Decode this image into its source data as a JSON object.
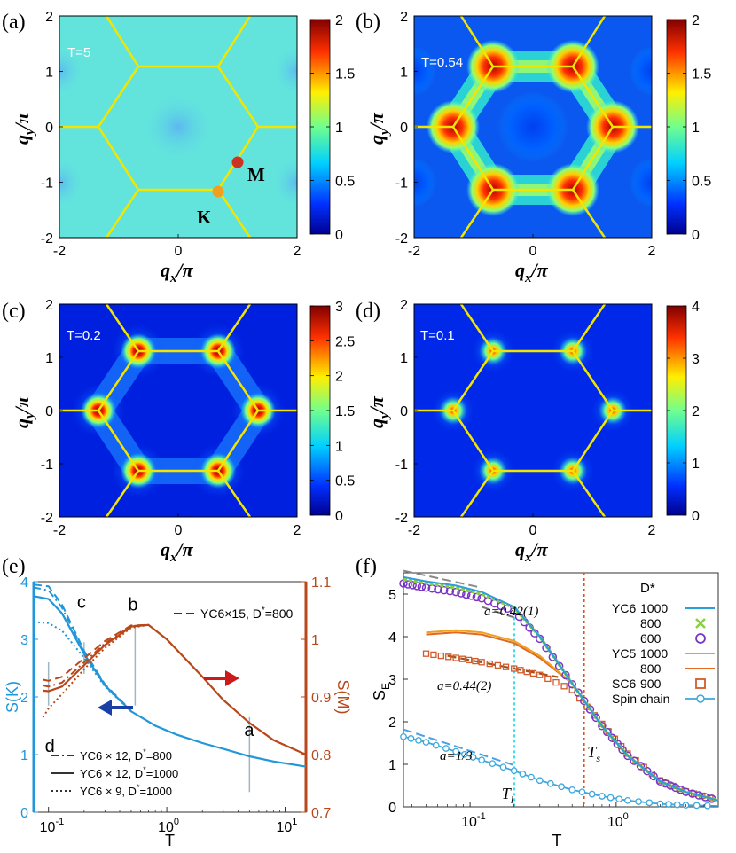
{
  "panels": {
    "a": {
      "letter": "(a)",
      "temp": "T=5",
      "cbar_ticks": [
        "2",
        "1.5",
        "1",
        "0.5",
        "0"
      ],
      "cbar_max": 2,
      "point_M": "M",
      "point_K": "K"
    },
    "b": {
      "letter": "(b)",
      "temp": "T=0.54",
      "cbar_ticks": [
        "2",
        "1.5",
        "1",
        "0.5",
        "0"
      ],
      "cbar_max": 2
    },
    "c": {
      "letter": "(c)",
      "temp": "T=0.2",
      "cbar_ticks": [
        "3",
        "2.5",
        "2",
        "1.5",
        "1",
        "0.5",
        "0"
      ],
      "cbar_max": 3
    },
    "d": {
      "letter": "(d)",
      "temp": "T=0.1",
      "cbar_ticks": [
        "4",
        "3",
        "2",
        "1",
        "0"
      ],
      "cbar_max": 4
    },
    "e": {
      "letter": "(e)"
    },
    "f": {
      "letter": "(f)"
    }
  },
  "map_axes": {
    "xticks": [
      "-2",
      "0",
      "2"
    ],
    "yticks": [
      "2",
      "1",
      "0",
      "-1",
      "-2"
    ],
    "xlabel_main": "q",
    "xlabel_sub": "x",
    "xlabel_tail": "/π",
    "ylabel_main": "q",
    "ylabel_sub": "y",
    "ylabel_tail": "/π"
  },
  "colors": {
    "hexagon": "#f2e600",
    "cmap": [
      "#00008f",
      "#0050ff",
      "#00dfff",
      "#70ff8f",
      "#ffef00",
      "#ff5000",
      "#800000"
    ],
    "SK": "#2196d8",
    "SM": "#b9471a",
    "YC6": "#2b9fd9",
    "green": "#88d040",
    "purple": "#7a35c8",
    "YC5": "#f0a020",
    "SC6": "#d35a2a"
  },
  "chart_data": [
    {
      "type": "line",
      "panel": "e",
      "xlabel": "T",
      "ylabel_left": "S(K)",
      "ylabel_right": "S(M)",
      "xscale": "log",
      "xlim": [
        0.075,
        15
      ],
      "ylim_left": [
        0,
        4
      ],
      "ylim_right": [
        0.7,
        1.1
      ],
      "xticks": [
        "10",
        "10",
        "10"
      ],
      "xtick_exps": [
        "-1",
        "0",
        "1"
      ],
      "yticks_left": [
        "0",
        "1",
        "2",
        "3",
        "4"
      ],
      "yticks_right": [
        "0.7",
        "0.8",
        "0.9",
        "1",
        "1.1"
      ],
      "legend_top": {
        "label": "YC6×15, D",
        "sup": "*",
        "tail": "=800"
      },
      "legend_bottom": [
        {
          "label": "YC6 × 12, D",
          "sup": "*",
          "tail": "=800",
          "style": "dashdot"
        },
        {
          "label": "YC6 × 12, D",
          "sup": "*",
          "tail": "=1000",
          "style": "solid"
        },
        {
          "label": "YC6 × 9, D",
          "sup": "*",
          "tail": "=1000",
          "style": "dotted"
        }
      ],
      "markers": [
        {
          "label": "a",
          "T": 5
        },
        {
          "label": "b",
          "T": 0.54
        },
        {
          "label": "c",
          "T": 0.2
        },
        {
          "label": "d",
          "T": 0.1
        }
      ],
      "series": [
        {
          "axis": "left",
          "style": "solid",
          "x": [
            0.075,
            0.1,
            0.13,
            0.2,
            0.3,
            0.5,
            0.8,
            1.2,
            2,
            3,
            5,
            8,
            15
          ],
          "y": [
            3.75,
            3.7,
            3.45,
            2.75,
            2.2,
            1.75,
            1.5,
            1.35,
            1.2,
            1.1,
            0.97,
            0.88,
            0.79
          ]
        },
        {
          "axis": "left",
          "style": "dashdot",
          "x": [
            0.075,
            0.1,
            0.13,
            0.2,
            0.3,
            0.5
          ],
          "y": [
            3.9,
            3.85,
            3.55,
            2.78,
            2.2,
            1.75
          ]
        },
        {
          "axis": "left",
          "style": "dashed",
          "x": [
            0.075,
            0.1,
            0.13,
            0.2,
            0.3,
            0.5
          ],
          "y": [
            3.95,
            3.92,
            3.6,
            2.8,
            2.22,
            1.76
          ]
        },
        {
          "axis": "left",
          "style": "dotted",
          "x": [
            0.075,
            0.1,
            0.13,
            0.2,
            0.3,
            0.5
          ],
          "y": [
            3.3,
            3.28,
            3.15,
            2.68,
            2.18,
            1.75
          ]
        },
        {
          "axis": "right",
          "style": "solid",
          "x": [
            0.09,
            0.1,
            0.13,
            0.2,
            0.3,
            0.5,
            0.7,
            1,
            2,
            3,
            5,
            8,
            15
          ],
          "y": [
            0.911,
            0.91,
            0.918,
            0.955,
            0.99,
            1.022,
            1.025,
            1.0,
            0.935,
            0.895,
            0.855,
            0.825,
            0.8
          ]
        },
        {
          "axis": "right",
          "style": "dashdot",
          "x": [
            0.09,
            0.1,
            0.13,
            0.2,
            0.3,
            0.5,
            0.7
          ],
          "y": [
            0.92,
            0.918,
            0.925,
            0.96,
            0.993,
            1.023,
            1.025
          ]
        },
        {
          "axis": "right",
          "style": "dashed",
          "x": [
            0.09,
            0.1,
            0.13,
            0.2,
            0.3,
            0.5,
            0.7
          ],
          "y": [
            0.93,
            0.928,
            0.935,
            0.967,
            0.997,
            1.024,
            1.025
          ]
        },
        {
          "axis": "right",
          "style": "dotted",
          "x": [
            0.09,
            0.1,
            0.13,
            0.2,
            0.3,
            0.5,
            0.7
          ],
          "y": [
            0.865,
            0.88,
            0.905,
            0.948,
            0.985,
            1.02,
            1.025
          ]
        }
      ]
    },
    {
      "type": "line",
      "panel": "f",
      "xlabel": "T",
      "ylabel": "S",
      "ylabel_sub": "E",
      "xscale": "log",
      "xlim": [
        0.035,
        5
      ],
      "ylim": [
        0,
        5.5
      ],
      "xticks": [
        "10",
        "10"
      ],
      "xtick_exps": [
        "-1",
        "0"
      ],
      "yticks": [
        "0",
        "1",
        "2",
        "3",
        "4",
        "5"
      ],
      "annotations": [
        "a=0.42(1)",
        "a=0.44(2)",
        "a=1/3"
      ],
      "Tl": {
        "label": "T",
        "sub": "l",
        "T": 0.2
      },
      "Ts": {
        "label": "T",
        "sub": "s",
        "T": 0.6
      },
      "legend": {
        "header": "D*",
        "rows": [
          {
            "model": "YC6",
            "D": "1000",
            "marker": "line"
          },
          {
            "model": "",
            "D": "800",
            "marker": "x"
          },
          {
            "model": "",
            "D": "600",
            "marker": "circle"
          },
          {
            "model": "YC5",
            "D": "1000",
            "marker": "line"
          },
          {
            "model": "",
            "D": "800",
            "marker": "line"
          },
          {
            "model": "SC6",
            "D": "900",
            "marker": "square"
          },
          {
            "model": "Spin chain",
            "D": "",
            "marker": "line-circle"
          }
        ]
      },
      "series": [
        {
          "name": "YC6 1000",
          "x": [
            0.035,
            0.05,
            0.08,
            0.12,
            0.2,
            0.3,
            0.5,
            0.8,
            1.2,
            2,
            3,
            5
          ],
          "y": [
            5.4,
            5.3,
            5.2,
            5.05,
            4.7,
            4.0,
            2.9,
            1.9,
            1.2,
            0.6,
            0.35,
            0.15
          ]
        },
        {
          "name": "YC6 800",
          "x": [
            0.035,
            0.05,
            0.08,
            0.12,
            0.2,
            0.3,
            0.5,
            0.8,
            1.2,
            2,
            3,
            5
          ],
          "y": [
            5.35,
            5.26,
            5.15,
            5.0,
            4.68,
            4.0,
            2.9,
            1.9,
            1.2,
            0.6,
            0.35,
            0.15
          ]
        },
        {
          "name": "YC6 600",
          "x": [
            0.035,
            0.05,
            0.08,
            0.12,
            0.2,
            0.3,
            0.5,
            0.8,
            1.2,
            2,
            3,
            5
          ],
          "y": [
            5.25,
            5.15,
            5.05,
            4.9,
            4.6,
            3.95,
            2.88,
            1.9,
            1.2,
            0.6,
            0.35,
            0.15
          ]
        },
        {
          "name": "YC5 1000",
          "x": [
            0.05,
            0.08,
            0.12,
            0.2,
            0.3,
            0.5,
            0.8,
            1.2,
            2,
            3,
            5
          ],
          "y": [
            4.1,
            4.15,
            4.1,
            3.9,
            3.55,
            2.9,
            1.9,
            1.2,
            0.6,
            0.35,
            0.15
          ]
        },
        {
          "name": "YC5 800",
          "x": [
            0.05,
            0.08,
            0.12,
            0.2,
            0.3,
            0.5,
            0.8,
            1.2,
            2,
            3,
            5
          ],
          "y": [
            4.05,
            4.1,
            4.05,
            3.85,
            3.5,
            2.9,
            1.9,
            1.2,
            0.6,
            0.35,
            0.15
          ]
        },
        {
          "name": "SC6 900",
          "x": [
            0.05,
            0.08,
            0.12,
            0.2,
            0.3,
            0.5,
            0.8,
            1.2,
            2,
            3,
            5
          ],
          "y": [
            3.6,
            3.5,
            3.4,
            3.25,
            3.1,
            2.75,
            1.95,
            1.25,
            0.62,
            0.36,
            0.16
          ]
        },
        {
          "name": "Spin chain",
          "x": [
            0.035,
            0.05,
            0.08,
            0.12,
            0.2,
            0.3,
            0.5,
            0.8,
            1.2,
            2,
            3,
            5
          ],
          "y": [
            1.65,
            1.52,
            1.3,
            1.1,
            0.85,
            0.62,
            0.4,
            0.25,
            0.15,
            0.07,
            0.04,
            0.02
          ]
        }
      ]
    }
  ]
}
